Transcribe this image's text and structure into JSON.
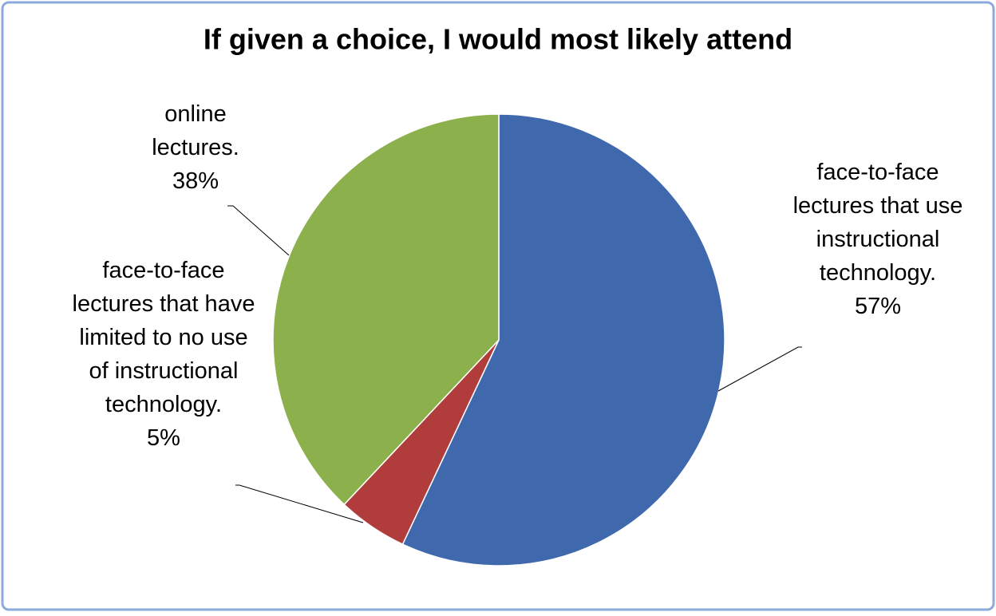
{
  "chart_data": {
    "type": "pie",
    "title": "If given a choice, I would most likely attend",
    "categories": [
      "face-to-face lectures that use instructional technology.",
      "face-to-face lectures that have limited to no use of instructional technology.",
      "online lectures."
    ],
    "values": [
      57,
      5,
      38
    ],
    "value_labels": [
      "57%",
      "5%",
      "38%"
    ],
    "colors": [
      "#4069ad",
      "#b13c3c",
      "#8cb04b"
    ]
  }
}
